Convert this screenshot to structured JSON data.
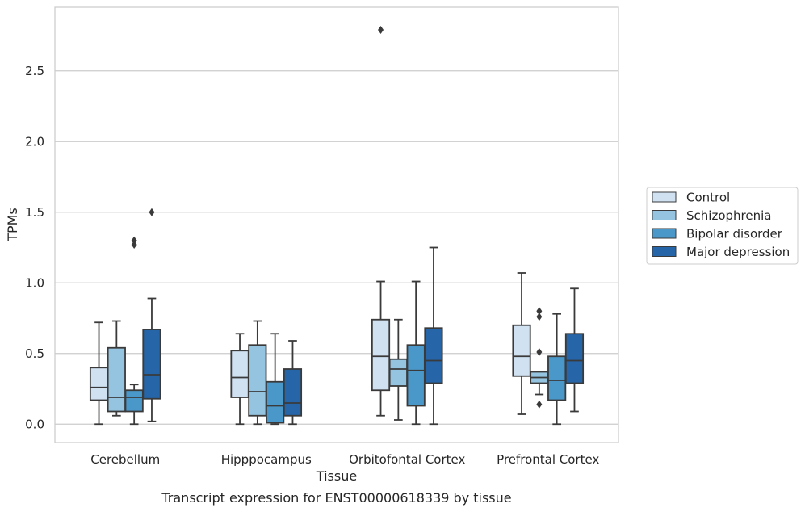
{
  "chart_data": {
    "type": "box",
    "title": "",
    "caption": "Transcript expression for ENST00000618339 by tissue",
    "xlabel": "Tissue",
    "ylabel": "TPMs",
    "ylim": [
      -0.13,
      2.95
    ],
    "yticks": [
      "0.0",
      "0.5",
      "1.0",
      "1.5",
      "2.0",
      "2.5"
    ],
    "grid": "horizontal",
    "legend_position": "right",
    "categories": [
      "Cerebellum",
      "Hipppocampus",
      "Orbitofontal Cortex",
      "Prefrontal Cortex"
    ],
    "series": [
      {
        "name": "Control",
        "color": "#d0e1f2",
        "boxes": [
          {
            "q1": 0.17,
            "median": 0.26,
            "q3": 0.4,
            "whisker_low": 0.0,
            "whisker_high": 0.72,
            "outliers": []
          },
          {
            "q1": 0.19,
            "median": 0.33,
            "q3": 0.52,
            "whisker_low": 0.0,
            "whisker_high": 0.64,
            "outliers": []
          },
          {
            "q1": 0.24,
            "median": 0.48,
            "q3": 0.74,
            "whisker_low": 0.06,
            "whisker_high": 1.01,
            "outliers": [
              2.79
            ]
          },
          {
            "q1": 0.34,
            "median": 0.48,
            "q3": 0.7,
            "whisker_low": 0.07,
            "whisker_high": 1.07,
            "outliers": []
          }
        ]
      },
      {
        "name": "Schizophrenia",
        "color": "#94c4df",
        "boxes": [
          {
            "q1": 0.09,
            "median": 0.19,
            "q3": 0.54,
            "whisker_low": 0.06,
            "whisker_high": 0.73,
            "outliers": []
          },
          {
            "q1": 0.06,
            "median": 0.23,
            "q3": 0.56,
            "whisker_low": 0.0,
            "whisker_high": 0.73,
            "outliers": []
          },
          {
            "q1": 0.27,
            "median": 0.39,
            "q3": 0.46,
            "whisker_low": 0.03,
            "whisker_high": 0.74,
            "outliers": []
          },
          {
            "q1": 0.29,
            "median": 0.33,
            "q3": 0.37,
            "whisker_low": 0.21,
            "whisker_high": 0.37,
            "outliers": [
              0.8,
              0.76,
              0.51,
              0.14
            ]
          }
        ]
      },
      {
        "name": "Bipolar disorder",
        "color": "#4a98c9",
        "boxes": [
          {
            "q1": 0.09,
            "median": 0.19,
            "q3": 0.24,
            "whisker_low": 0.0,
            "whisker_high": 0.28,
            "outliers": [
              1.3,
              1.27
            ]
          },
          {
            "q1": 0.01,
            "median": 0.13,
            "q3": 0.3,
            "whisker_low": 0.0,
            "whisker_high": 0.64,
            "outliers": []
          },
          {
            "q1": 0.13,
            "median": 0.38,
            "q3": 0.56,
            "whisker_low": 0.0,
            "whisker_high": 1.01,
            "outliers": []
          },
          {
            "q1": 0.17,
            "median": 0.31,
            "q3": 0.48,
            "whisker_low": 0.0,
            "whisker_high": 0.78,
            "outliers": []
          }
        ]
      },
      {
        "name": "Major depression",
        "color": "#2565a8",
        "boxes": [
          {
            "q1": 0.18,
            "median": 0.35,
            "q3": 0.67,
            "whisker_low": 0.02,
            "whisker_high": 0.89,
            "outliers": [
              1.5
            ]
          },
          {
            "q1": 0.06,
            "median": 0.15,
            "q3": 0.39,
            "whisker_low": 0.0,
            "whisker_high": 0.59,
            "outliers": []
          },
          {
            "q1": 0.29,
            "median": 0.45,
            "q3": 0.68,
            "whisker_low": 0.0,
            "whisker_high": 1.25,
            "outliers": []
          },
          {
            "q1": 0.29,
            "median": 0.45,
            "q3": 0.64,
            "whisker_low": 0.09,
            "whisker_high": 0.96,
            "outliers": []
          }
        ]
      }
    ]
  }
}
